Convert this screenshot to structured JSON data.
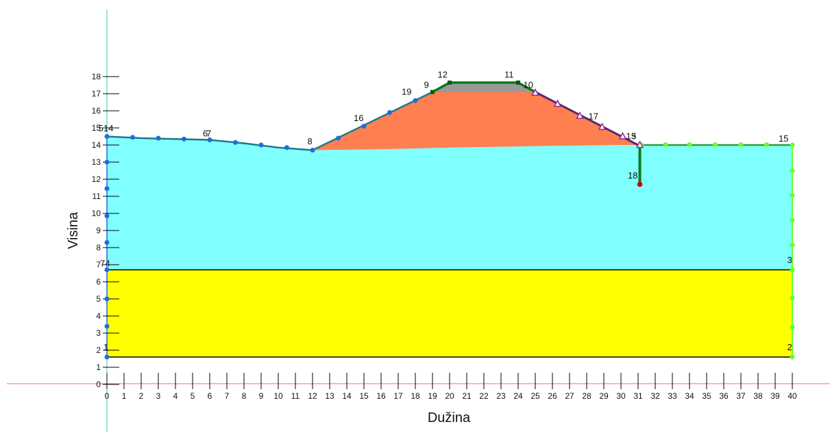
{
  "axes": {
    "x_title": "Dužina",
    "y_title": "Visina",
    "x_ticks": [
      0,
      1,
      2,
      3,
      4,
      5,
      6,
      7,
      8,
      9,
      10,
      11,
      12,
      13,
      14,
      15,
      16,
      17,
      18,
      19,
      20,
      21,
      22,
      23,
      24,
      25,
      26,
      27,
      28,
      29,
      30,
      31,
      32,
      33,
      34,
      35,
      36,
      37,
      38,
      39,
      40
    ],
    "y_ticks": [
      0,
      1,
      2,
      3,
      4,
      5,
      6,
      7,
      8,
      9,
      10,
      11,
      12,
      13,
      14,
      15,
      16,
      17,
      18
    ],
    "x_range": [
      0,
      40
    ],
    "y_range": [
      0,
      18
    ]
  },
  "colors": {
    "bottom_layer": "#ffff00",
    "middle_layer": "#80ffff",
    "embankment": "#ff7f50",
    "crest": "#999999",
    "origin_axis_x": "#ff6666",
    "origin_axis_y": "#33cc88",
    "left_boundary_points": "#1a6fdf",
    "right_boundary_points": "#66ff33",
    "green_line": "#0a7a1a",
    "right_slope_line": "#5a2a6a",
    "water_point": "#cc0000"
  },
  "layers": [
    {
      "name": "bottom",
      "polygon": [
        [
          0,
          1.6
        ],
        [
          40,
          1.6
        ],
        [
          40,
          6.7
        ],
        [
          0,
          6.7
        ]
      ]
    },
    {
      "name": "middle",
      "polygon": [
        [
          0,
          6.7
        ],
        [
          40,
          6.7
        ],
        [
          40,
          14
        ],
        [
          31,
          14
        ],
        [
          30,
          14
        ],
        [
          26,
          13.95
        ],
        [
          20,
          13.85
        ],
        [
          16,
          13.75
        ],
        [
          12,
          13.7
        ],
        [
          10,
          13.85
        ],
        [
          8,
          14.1
        ],
        [
          6,
          14.3
        ],
        [
          4,
          14.35
        ],
        [
          2,
          14.4
        ],
        [
          0,
          14.5
        ]
      ]
    },
    {
      "name": "embankment",
      "polygon": [
        [
          12,
          13.7
        ],
        [
          16,
          13.75
        ],
        [
          20,
          13.85
        ],
        [
          26,
          13.95
        ],
        [
          30,
          14
        ],
        [
          31,
          14
        ],
        [
          25,
          17.1
        ],
        [
          19,
          17.1
        ]
      ]
    },
    {
      "name": "crest",
      "polygon": [
        [
          19,
          17.1
        ],
        [
          20,
          17.65
        ],
        [
          24,
          17.65
        ],
        [
          25,
          17.1
        ]
      ]
    }
  ],
  "boundary_lines": [
    {
      "from": [
        0,
        1.6
      ],
      "to": [
        40,
        1.6
      ]
    },
    {
      "from": [
        0,
        6.7
      ],
      "to": [
        40,
        6.7
      ]
    }
  ],
  "surface_left": [
    [
      0,
      14.5
    ],
    [
      2,
      14.4
    ],
    [
      4,
      14.35
    ],
    [
      6,
      14.3
    ],
    [
      8,
      14.1
    ],
    [
      10,
      13.85
    ],
    [
      12,
      13.7
    ]
  ],
  "slope_left": [
    [
      12,
      13.7
    ],
    [
      19,
      17.1
    ]
  ],
  "crest_line": [
    [
      19,
      17.1
    ],
    [
      20,
      17.65
    ],
    [
      24,
      17.65
    ],
    [
      25,
      17.1
    ]
  ],
  "slope_right": [
    [
      25,
      17.1
    ],
    [
      31,
      14
    ]
  ],
  "surface_right": [
    [
      31,
      14
    ],
    [
      40,
      14
    ]
  ],
  "right_boundary": [
    [
      40,
      1.6
    ],
    [
      40,
      14
    ]
  ],
  "drain_line": [
    [
      31.1,
      14
    ],
    [
      31.1,
      11.7
    ]
  ],
  "blue_points": [
    [
      0,
      14.5
    ],
    [
      1.5,
      14.45
    ],
    [
      3,
      14.4
    ],
    [
      4.5,
      14.35
    ],
    [
      6,
      14.3
    ],
    [
      7.5,
      14.15
    ],
    [
      9,
      14
    ],
    [
      10.5,
      13.85
    ],
    [
      12,
      13.7
    ],
    [
      13.5,
      14.4
    ],
    [
      15,
      15.1
    ],
    [
      16.5,
      15.9
    ],
    [
      18,
      16.6
    ],
    [
      0,
      13
    ],
    [
      0,
      11.45
    ],
    [
      0,
      9.85
    ],
    [
      0,
      8.3
    ],
    [
      0,
      6.7
    ],
    [
      0,
      5
    ],
    [
      0,
      3.4
    ],
    [
      0,
      1.6
    ]
  ],
  "green_points": [
    [
      31.2,
      14
    ],
    [
      32.6,
      14.02
    ],
    [
      34,
      14.02
    ],
    [
      35.5,
      14.02
    ],
    [
      37,
      14.02
    ],
    [
      38.5,
      14.02
    ],
    [
      40,
      14
    ],
    [
      40,
      12.5
    ],
    [
      40,
      11.05
    ],
    [
      40,
      9.6
    ],
    [
      40,
      8.15
    ],
    [
      40,
      6.7
    ],
    [
      40,
      5.05
    ],
    [
      40,
      3.35
    ],
    [
      40,
      1.6
    ]
  ],
  "dark_green_points": [
    [
      19,
      17.1
    ],
    [
      20,
      17.65
    ],
    [
      24,
      17.65
    ]
  ],
  "purple_triangles": [
    [
      25,
      17.05
    ],
    [
      26.3,
      16.4
    ],
    [
      27.6,
      15.7
    ],
    [
      28.9,
      15.05
    ],
    [
      30.1,
      14.5
    ],
    [
      31.1,
      14
    ]
  ],
  "red_point": [
    31.1,
    11.7
  ],
  "node_labels": [
    {
      "text": "1",
      "x": -0.2,
      "y": 2.0
    },
    {
      "text": "2",
      "x": 39.7,
      "y": 2.0
    },
    {
      "text": "3",
      "x": 39.7,
      "y": 7.1
    },
    {
      "text": "7",
      "x": -0.4,
      "y": 6.9
    },
    {
      "text": "4",
      "x": -0.1,
      "y": 6.9
    },
    {
      "text": "5",
      "x": -0.5,
      "y": 14.8
    },
    {
      "text": "14",
      "x": -0.2,
      "y": 14.8
    },
    {
      "text": "6",
      "x": 5.6,
      "y": 14.5
    },
    {
      "text": "7",
      "x": 5.8,
      "y": 14.5
    },
    {
      "text": "8",
      "x": 11.7,
      "y": 14.05
    },
    {
      "text": "16",
      "x": 14.4,
      "y": 15.4
    },
    {
      "text": "19",
      "x": 17.2,
      "y": 16.95
    },
    {
      "text": "9",
      "x": 18.5,
      "y": 17.35
    },
    {
      "text": "12",
      "x": 19.3,
      "y": 17.95
    },
    {
      "text": "11",
      "x": 23.2,
      "y": 17.95
    },
    {
      "text": "10",
      "x": 24.3,
      "y": 17.35
    },
    {
      "text": "17",
      "x": 28.1,
      "y": 15.5
    },
    {
      "text": "13",
      "x": 30.3,
      "y": 14.35
    },
    {
      "text": "5",
      "x": 30.6,
      "y": 14.35
    },
    {
      "text": "15",
      "x": 39.2,
      "y": 14.2
    },
    {
      "text": "18",
      "x": 30.4,
      "y": 12.05
    }
  ]
}
